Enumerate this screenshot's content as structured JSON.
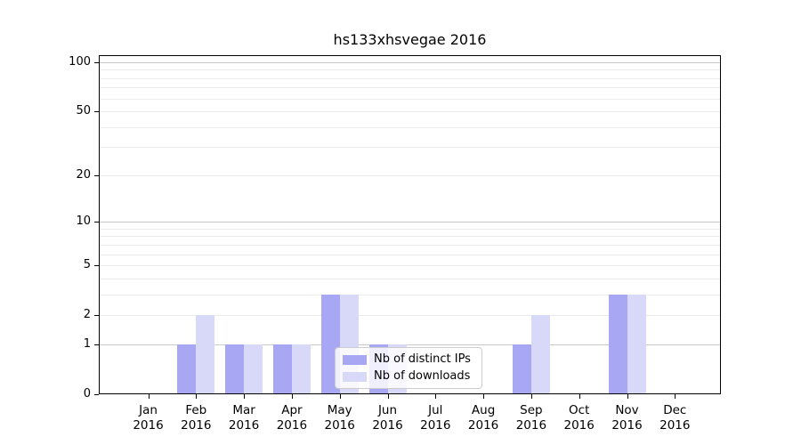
{
  "figure": {
    "title": "hs133xhsvegae 2016"
  },
  "chart_data": {
    "type": "bar",
    "title": "hs133xhsvegae 2016",
    "categories": [
      "Jan",
      "Feb",
      "Mar",
      "Apr",
      "May",
      "Jun",
      "Jul",
      "Aug",
      "Sep",
      "Oct",
      "Nov",
      "Dec"
    ],
    "year": "2016",
    "series": [
      {
        "name": "Nb of distinct IPs",
        "color": "#a7a7f4",
        "values": [
          0,
          1,
          1,
          1,
          3,
          1,
          0,
          0,
          1,
          0,
          3,
          0
        ]
      },
      {
        "name": "Nb of downloads",
        "color": "#d8d8f9",
        "values": [
          0,
          2,
          1,
          1,
          3,
          1,
          0,
          0,
          2,
          0,
          3,
          0
        ]
      }
    ],
    "xlabel": "",
    "ylabel": "",
    "yscale": "log1p",
    "yticks": [
      0,
      1,
      2,
      5,
      10,
      20,
      50,
      100
    ],
    "ylim": [
      0,
      111
    ],
    "grid": {
      "on": true,
      "major_at": [
        1,
        10,
        100
      ],
      "minor_at": [
        2,
        3,
        4,
        5,
        6,
        7,
        8,
        9,
        20,
        30,
        40,
        50,
        60,
        70,
        80,
        90
      ]
    },
    "legend_position": "inside-lower-center",
    "colors": {
      "grid_major": "#c9c9c9",
      "grid_minor": "#ebebeb",
      "spine": "#000000"
    }
  }
}
